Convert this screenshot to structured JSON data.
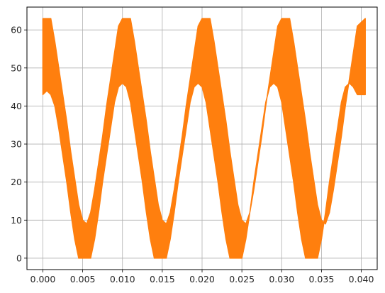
{
  "chart_data": {
    "type": "line",
    "title": "",
    "xlabel": "",
    "ylabel": "",
    "xlim": [
      -0.002,
      0.042
    ],
    "ylim": [
      -3,
      66
    ],
    "x_ticks": [
      0.0,
      0.005,
      0.01,
      0.015,
      0.02,
      0.025,
      0.03,
      0.035,
      0.04
    ],
    "x_tick_labels": [
      "0.000",
      "0.005",
      "0.010",
      "0.015",
      "0.020",
      "0.025",
      "0.030",
      "0.035",
      "0.040"
    ],
    "y_ticks": [
      0,
      10,
      20,
      30,
      40,
      50,
      60
    ],
    "y_tick_labels": [
      "0",
      "10",
      "20",
      "30",
      "40",
      "50",
      "60"
    ],
    "grid": true,
    "legend": "none",
    "series": [
      {
        "color": "#ff7f0e",
        "x": [
          0.0,
          0.0005,
          0.001,
          0.0015,
          0.002,
          0.0025,
          0.003,
          0.0035,
          0.004,
          0.0045,
          0.005,
          0.0055,
          0.006,
          0.0065,
          0.007,
          0.0075,
          0.008,
          0.0085,
          0.009,
          0.0095,
          0.01,
          0.0105,
          0.011,
          0.0115,
          0.012,
          0.0125,
          0.013,
          0.0135,
          0.014,
          0.0145,
          0.015,
          0.0155,
          0.016,
          0.0165,
          0.017,
          0.0175,
          0.018,
          0.0185,
          0.019,
          0.0195,
          0.02,
          0.0205,
          0.021,
          0.0215,
          0.022,
          0.0225,
          0.023,
          0.0235,
          0.024,
          0.0245,
          0.025,
          0.0255,
          0.026,
          0.0265,
          0.027,
          0.0275,
          0.028,
          0.0285,
          0.029,
          0.0295,
          0.03,
          0.0305,
          0.031,
          0.0315,
          0.032,
          0.0325,
          0.033,
          0.0335,
          0.034,
          0.0345,
          0.035,
          0.0355,
          0.036,
          0.0365,
          0.037,
          0.0375,
          0.038,
          0.0385,
          0.039,
          0.0395,
          0.0405
        ],
        "y_min": [
          43,
          44,
          43,
          40,
          34,
          27,
          20,
          12,
          5,
          0,
          0,
          0,
          0,
          5,
          12,
          20,
          27,
          34,
          41,
          45,
          46,
          45,
          41,
          34,
          27,
          20,
          12,
          5,
          0,
          0,
          0,
          0,
          5,
          12,
          20,
          27,
          34,
          41,
          45,
          46,
          45,
          41,
          34,
          27,
          20,
          12,
          5,
          0,
          0,
          0,
          0,
          5,
          12,
          20,
          27,
          34,
          41,
          45,
          46,
          45,
          41,
          34,
          27,
          20,
          12,
          5,
          0,
          0,
          0,
          0,
          5,
          12,
          20,
          27,
          34,
          41,
          45,
          46,
          45,
          43,
          43
        ],
        "y_max": [
          63,
          63,
          63,
          57,
          50,
          43,
          36,
          28,
          21,
          14,
          10,
          9,
          12,
          18,
          25,
          32,
          40,
          47,
          54,
          61,
          63,
          63,
          63,
          57,
          50,
          43,
          36,
          28,
          21,
          14,
          10,
          9,
          12,
          18,
          25,
          32,
          40,
          47,
          54,
          61,
          63,
          63,
          63,
          57,
          50,
          43,
          36,
          28,
          21,
          14,
          10,
          9,
          12,
          18,
          25,
          32,
          40,
          47,
          54,
          61,
          63,
          63,
          63,
          57,
          50,
          43,
          36,
          28,
          21,
          14,
          10,
          9,
          12,
          18,
          25,
          32,
          40,
          47,
          54,
          61,
          63
        ]
      }
    ]
  }
}
